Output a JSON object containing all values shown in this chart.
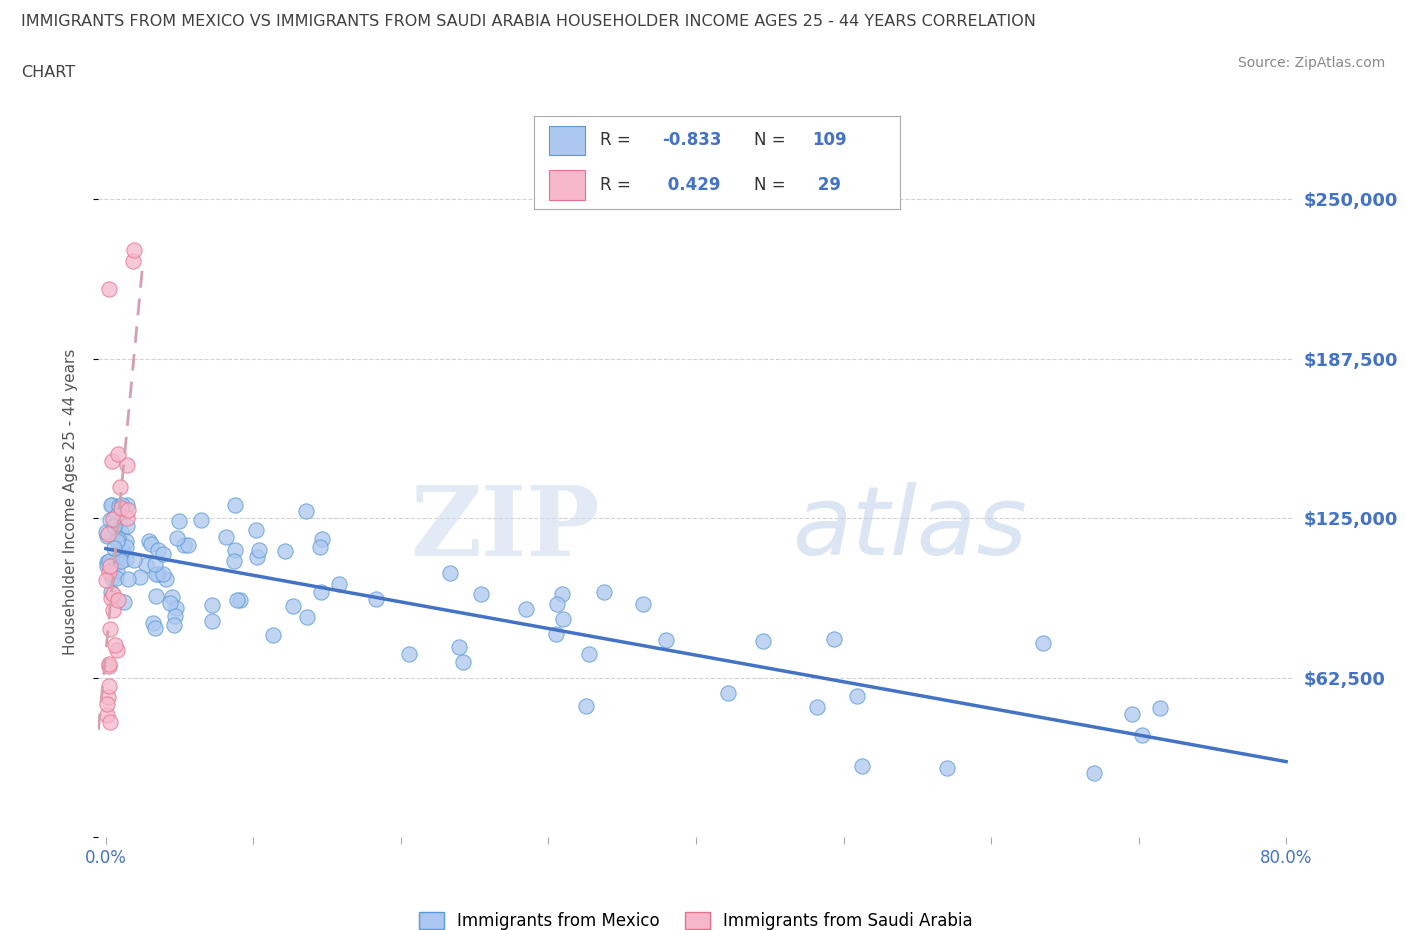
{
  "title_line1": "IMMIGRANTS FROM MEXICO VS IMMIGRANTS FROM SAUDI ARABIA HOUSEHOLDER INCOME AGES 25 - 44 YEARS CORRELATION",
  "title_line2": "CHART",
  "source_text": "Source: ZipAtlas.com",
  "ylabel": "Householder Income Ages 25 - 44 years",
  "xlim": [
    -0.005,
    0.805
  ],
  "ylim": [
    0,
    262500
  ],
  "yticks": [
    0,
    62500,
    125000,
    187500,
    250000
  ],
  "ytick_labels": [
    "",
    "$62,500",
    "$125,000",
    "$187,500",
    "$250,000"
  ],
  "xticks": [
    0.0,
    0.1,
    0.2,
    0.3,
    0.4,
    0.5,
    0.6,
    0.7,
    0.8
  ],
  "xtick_labels_bottom": [
    "0.0%",
    "",
    "",
    "",
    "",
    "",
    "",
    "",
    "80.0%"
  ],
  "mexico_color": "#adc8f0",
  "saudi_color": "#f5b8cb",
  "mexico_edge_color": "#5b9bd5",
  "saudi_edge_color": "#e8708a",
  "mexico_line_color": "#4472c4",
  "saudi_line_color": "#d4a0b0",
  "mexico_R": -0.833,
  "mexico_N": 109,
  "saudi_R": 0.429,
  "saudi_N": 29,
  "legend_label_mexico": "Immigrants from Mexico",
  "legend_label_saudi": "Immigrants from Saudi Arabia",
  "watermark_zip": "ZIP",
  "watermark_atlas": "atlas",
  "background_color": "#ffffff",
  "grid_color": "#c8c8c8",
  "yaxis_label_color": "#4472c4",
  "title_color": "#404040",
  "source_color": "#888888"
}
